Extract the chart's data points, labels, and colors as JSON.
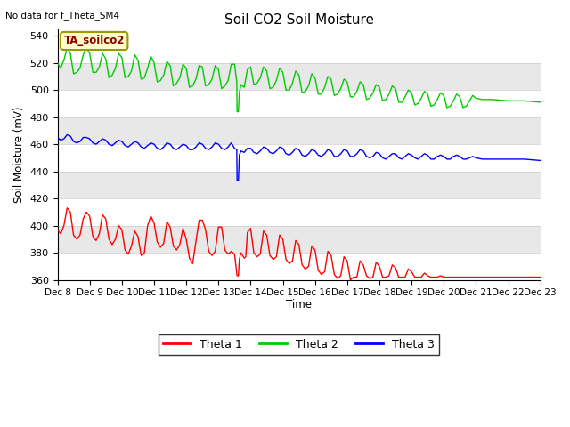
{
  "title": "Soil CO2 Soil Moisture",
  "top_left_text": "No data for f_Theta_SM4",
  "annotation_box_text": "TA_soilco2",
  "ylabel": "Soil Moisture (mV)",
  "xlabel": "Time",
  "ylim": [
    360,
    545
  ],
  "xlim": [
    0,
    15
  ],
  "x_tick_labels": [
    "Dec 8",
    "Dec 9",
    "Dec 10",
    "Dec 11",
    "Dec 12",
    "Dec 13",
    "Dec 14",
    "Dec 15",
    "Dec 16",
    "Dec 17",
    "Dec 18",
    "Dec 19",
    "Dec 20",
    "Dec 21",
    "Dec 22",
    "Dec 23"
  ],
  "background_color": "#ffffff",
  "plot_bg_color": "#e8e8e8",
  "white_band_ranges": [
    [
      360,
      380
    ],
    [
      400,
      420
    ],
    [
      440,
      460
    ],
    [
      480,
      500
    ],
    [
      520,
      545
    ]
  ],
  "gray_band_ranges": [
    [
      380,
      400
    ],
    [
      420,
      440
    ],
    [
      460,
      480
    ],
    [
      500,
      520
    ]
  ],
  "theta1_color": "#ff0000",
  "theta2_color": "#00cc00",
  "theta3_color": "#0000ff",
  "theta1_data": [
    [
      0.0,
      397
    ],
    [
      0.1,
      394
    ],
    [
      0.2,
      400
    ],
    [
      0.3,
      413
    ],
    [
      0.4,
      410
    ],
    [
      0.5,
      393
    ],
    [
      0.6,
      390
    ],
    [
      0.7,
      393
    ],
    [
      0.8,
      405
    ],
    [
      0.9,
      410
    ],
    [
      1.0,
      407
    ],
    [
      1.1,
      392
    ],
    [
      1.2,
      389
    ],
    [
      1.3,
      394
    ],
    [
      1.4,
      408
    ],
    [
      1.5,
      405
    ],
    [
      1.6,
      390
    ],
    [
      1.7,
      386
    ],
    [
      1.8,
      390
    ],
    [
      1.9,
      400
    ],
    [
      2.0,
      397
    ],
    [
      2.1,
      382
    ],
    [
      2.2,
      379
    ],
    [
      2.3,
      385
    ],
    [
      2.4,
      396
    ],
    [
      2.5,
      392
    ],
    [
      2.6,
      378
    ],
    [
      2.7,
      380
    ],
    [
      2.8,
      400
    ],
    [
      2.9,
      407
    ],
    [
      3.0,
      402
    ],
    [
      3.1,
      388
    ],
    [
      3.2,
      384
    ],
    [
      3.3,
      387
    ],
    [
      3.4,
      403
    ],
    [
      3.5,
      399
    ],
    [
      3.6,
      385
    ],
    [
      3.7,
      382
    ],
    [
      3.8,
      386
    ],
    [
      3.9,
      398
    ],
    [
      4.0,
      390
    ],
    [
      4.1,
      376
    ],
    [
      4.2,
      372
    ],
    [
      4.3,
      388
    ],
    [
      4.4,
      404
    ],
    [
      4.5,
      404
    ],
    [
      4.6,
      397
    ],
    [
      4.7,
      381
    ],
    [
      4.8,
      378
    ],
    [
      4.9,
      381
    ],
    [
      5.0,
      399
    ],
    [
      5.1,
      399
    ],
    [
      5.2,
      382
    ],
    [
      5.3,
      379
    ],
    [
      5.4,
      381
    ],
    [
      5.5,
      379
    ],
    [
      5.58,
      363
    ],
    [
      5.6,
      363
    ],
    [
      5.62,
      363
    ],
    [
      5.65,
      375
    ],
    [
      5.7,
      380
    ],
    [
      5.8,
      376
    ],
    [
      5.85,
      377
    ],
    [
      5.9,
      395
    ],
    [
      6.0,
      398
    ],
    [
      6.1,
      380
    ],
    [
      6.2,
      377
    ],
    [
      6.3,
      379
    ],
    [
      6.4,
      396
    ],
    [
      6.5,
      393
    ],
    [
      6.6,
      378
    ],
    [
      6.7,
      375
    ],
    [
      6.8,
      377
    ],
    [
      6.9,
      393
    ],
    [
      7.0,
      390
    ],
    [
      7.1,
      375
    ],
    [
      7.2,
      372
    ],
    [
      7.3,
      374
    ],
    [
      7.4,
      389
    ],
    [
      7.5,
      386
    ],
    [
      7.6,
      371
    ],
    [
      7.7,
      368
    ],
    [
      7.8,
      370
    ],
    [
      7.9,
      385
    ],
    [
      8.0,
      382
    ],
    [
      8.1,
      367
    ],
    [
      8.2,
      364
    ],
    [
      8.3,
      366
    ],
    [
      8.4,
      381
    ],
    [
      8.5,
      378
    ],
    [
      8.6,
      364
    ],
    [
      8.7,
      361
    ],
    [
      8.8,
      363
    ],
    [
      8.9,
      377
    ],
    [
      9.0,
      374
    ],
    [
      9.1,
      360
    ],
    [
      9.2,
      362
    ],
    [
      9.3,
      362
    ],
    [
      9.4,
      374
    ],
    [
      9.5,
      371
    ],
    [
      9.6,
      363
    ],
    [
      9.7,
      361
    ],
    [
      9.8,
      362
    ],
    [
      9.9,
      373
    ],
    [
      10.0,
      370
    ],
    [
      10.1,
      362
    ],
    [
      10.2,
      362
    ],
    [
      10.3,
      363
    ],
    [
      10.4,
      371
    ],
    [
      10.5,
      369
    ],
    [
      10.6,
      362
    ],
    [
      10.7,
      362
    ],
    [
      10.8,
      362
    ],
    [
      10.9,
      368
    ],
    [
      11.0,
      366
    ],
    [
      11.1,
      362
    ],
    [
      11.2,
      362
    ],
    [
      11.3,
      362
    ],
    [
      11.4,
      365
    ],
    [
      11.5,
      363
    ],
    [
      11.6,
      362
    ],
    [
      11.7,
      362
    ],
    [
      11.8,
      362
    ],
    [
      11.9,
      363
    ],
    [
      12.0,
      362
    ],
    [
      12.1,
      362
    ],
    [
      12.2,
      362
    ],
    [
      12.3,
      362
    ],
    [
      12.4,
      362
    ],
    [
      12.5,
      362
    ],
    [
      12.6,
      362
    ],
    [
      12.7,
      362
    ],
    [
      12.8,
      362
    ],
    [
      12.9,
      362
    ],
    [
      13.0,
      362
    ],
    [
      13.1,
      362
    ],
    [
      13.2,
      362
    ],
    [
      13.5,
      362
    ],
    [
      14.0,
      362
    ],
    [
      14.5,
      362
    ],
    [
      15.0,
      362
    ]
  ],
  "theta2_data": [
    [
      0.0,
      520
    ],
    [
      0.1,
      516
    ],
    [
      0.2,
      522
    ],
    [
      0.3,
      531
    ],
    [
      0.4,
      527
    ],
    [
      0.5,
      512
    ],
    [
      0.6,
      513
    ],
    [
      0.7,
      516
    ],
    [
      0.8,
      526
    ],
    [
      0.9,
      531
    ],
    [
      1.0,
      527
    ],
    [
      1.1,
      513
    ],
    [
      1.2,
      513
    ],
    [
      1.3,
      517
    ],
    [
      1.4,
      527
    ],
    [
      1.5,
      523
    ],
    [
      1.6,
      509
    ],
    [
      1.7,
      511
    ],
    [
      1.8,
      516
    ],
    [
      1.9,
      527
    ],
    [
      2.0,
      524
    ],
    [
      2.1,
      509
    ],
    [
      2.2,
      510
    ],
    [
      2.3,
      514
    ],
    [
      2.4,
      526
    ],
    [
      2.5,
      522
    ],
    [
      2.6,
      508
    ],
    [
      2.7,
      509
    ],
    [
      2.8,
      516
    ],
    [
      2.9,
      525
    ],
    [
      3.0,
      520
    ],
    [
      3.1,
      506
    ],
    [
      3.2,
      507
    ],
    [
      3.3,
      511
    ],
    [
      3.4,
      521
    ],
    [
      3.5,
      518
    ],
    [
      3.6,
      503
    ],
    [
      3.7,
      505
    ],
    [
      3.8,
      509
    ],
    [
      3.9,
      519
    ],
    [
      4.0,
      516
    ],
    [
      4.1,
      502
    ],
    [
      4.2,
      503
    ],
    [
      4.3,
      508
    ],
    [
      4.4,
      518
    ],
    [
      4.5,
      517
    ],
    [
      4.6,
      503
    ],
    [
      4.7,
      504
    ],
    [
      4.8,
      508
    ],
    [
      4.9,
      518
    ],
    [
      5.0,
      515
    ],
    [
      5.1,
      501
    ],
    [
      5.2,
      503
    ],
    [
      5.3,
      507
    ],
    [
      5.4,
      519
    ],
    [
      5.5,
      519
    ],
    [
      5.57,
      506
    ],
    [
      5.58,
      484
    ],
    [
      5.6,
      484
    ],
    [
      5.62,
      484
    ],
    [
      5.65,
      498
    ],
    [
      5.7,
      504
    ],
    [
      5.8,
      502
    ],
    [
      5.9,
      515
    ],
    [
      6.0,
      517
    ],
    [
      6.1,
      504
    ],
    [
      6.2,
      505
    ],
    [
      6.3,
      509
    ],
    [
      6.4,
      517
    ],
    [
      6.5,
      514
    ],
    [
      6.6,
      501
    ],
    [
      6.7,
      502
    ],
    [
      6.8,
      507
    ],
    [
      6.9,
      516
    ],
    [
      7.0,
      513
    ],
    [
      7.1,
      500
    ],
    [
      7.2,
      500
    ],
    [
      7.3,
      505
    ],
    [
      7.4,
      514
    ],
    [
      7.5,
      511
    ],
    [
      7.6,
      498
    ],
    [
      7.7,
      499
    ],
    [
      7.8,
      503
    ],
    [
      7.9,
      512
    ],
    [
      8.0,
      509
    ],
    [
      8.1,
      497
    ],
    [
      8.2,
      497
    ],
    [
      8.3,
      502
    ],
    [
      8.4,
      510
    ],
    [
      8.5,
      508
    ],
    [
      8.6,
      496
    ],
    [
      8.7,
      497
    ],
    [
      8.8,
      501
    ],
    [
      8.9,
      508
    ],
    [
      9.0,
      506
    ],
    [
      9.1,
      495
    ],
    [
      9.2,
      495
    ],
    [
      9.3,
      499
    ],
    [
      9.4,
      506
    ],
    [
      9.5,
      504
    ],
    [
      9.6,
      493
    ],
    [
      9.7,
      494
    ],
    [
      9.8,
      498
    ],
    [
      9.9,
      504
    ],
    [
      10.0,
      502
    ],
    [
      10.1,
      492
    ],
    [
      10.2,
      493
    ],
    [
      10.3,
      497
    ],
    [
      10.4,
      503
    ],
    [
      10.5,
      501
    ],
    [
      10.6,
      491
    ],
    [
      10.7,
      491
    ],
    [
      10.8,
      495
    ],
    [
      10.9,
      500
    ],
    [
      11.0,
      498
    ],
    [
      11.1,
      489
    ],
    [
      11.2,
      490
    ],
    [
      11.3,
      494
    ],
    [
      11.4,
      499
    ],
    [
      11.5,
      497
    ],
    [
      11.6,
      488
    ],
    [
      11.7,
      489
    ],
    [
      11.8,
      493
    ],
    [
      11.9,
      498
    ],
    [
      12.0,
      496
    ],
    [
      12.1,
      487
    ],
    [
      12.2,
      488
    ],
    [
      12.3,
      492
    ],
    [
      12.4,
      497
    ],
    [
      12.5,
      495
    ],
    [
      12.6,
      487
    ],
    [
      12.7,
      488
    ],
    [
      12.8,
      492
    ],
    [
      12.9,
      496
    ],
    [
      13.0,
      494
    ],
    [
      13.2,
      493
    ],
    [
      13.5,
      493
    ],
    [
      14.0,
      492
    ],
    [
      14.5,
      492
    ],
    [
      15.0,
      491
    ]
  ],
  "theta3_data": [
    [
      0.0,
      465
    ],
    [
      0.1,
      463
    ],
    [
      0.2,
      464
    ],
    [
      0.3,
      467
    ],
    [
      0.4,
      466
    ],
    [
      0.5,
      462
    ],
    [
      0.6,
      461
    ],
    [
      0.7,
      462
    ],
    [
      0.8,
      465
    ],
    [
      0.9,
      465
    ],
    [
      1.0,
      464
    ],
    [
      1.1,
      461
    ],
    [
      1.2,
      460
    ],
    [
      1.3,
      462
    ],
    [
      1.4,
      464
    ],
    [
      1.5,
      463
    ],
    [
      1.6,
      460
    ],
    [
      1.7,
      459
    ],
    [
      1.8,
      461
    ],
    [
      1.9,
      463
    ],
    [
      2.0,
      462
    ],
    [
      2.1,
      459
    ],
    [
      2.2,
      458
    ],
    [
      2.3,
      460
    ],
    [
      2.4,
      462
    ],
    [
      2.5,
      461
    ],
    [
      2.6,
      458
    ],
    [
      2.7,
      457
    ],
    [
      2.8,
      459
    ],
    [
      2.9,
      461
    ],
    [
      3.0,
      460
    ],
    [
      3.1,
      457
    ],
    [
      3.2,
      456
    ],
    [
      3.3,
      458
    ],
    [
      3.4,
      461
    ],
    [
      3.5,
      460
    ],
    [
      3.6,
      457
    ],
    [
      3.7,
      456
    ],
    [
      3.8,
      458
    ],
    [
      3.9,
      460
    ],
    [
      4.0,
      459
    ],
    [
      4.1,
      456
    ],
    [
      4.2,
      456
    ],
    [
      4.3,
      458
    ],
    [
      4.4,
      461
    ],
    [
      4.5,
      460
    ],
    [
      4.6,
      457
    ],
    [
      4.7,
      456
    ],
    [
      4.8,
      458
    ],
    [
      4.9,
      461
    ],
    [
      5.0,
      460
    ],
    [
      5.1,
      457
    ],
    [
      5.2,
      456
    ],
    [
      5.3,
      458
    ],
    [
      5.4,
      461
    ],
    [
      5.5,
      457
    ],
    [
      5.57,
      456
    ],
    [
      5.58,
      433
    ],
    [
      5.6,
      433
    ],
    [
      5.62,
      433
    ],
    [
      5.65,
      452
    ],
    [
      5.7,
      455
    ],
    [
      5.8,
      454
    ],
    [
      5.9,
      457
    ],
    [
      6.0,
      457
    ],
    [
      6.1,
      454
    ],
    [
      6.2,
      453
    ],
    [
      6.3,
      455
    ],
    [
      6.4,
      458
    ],
    [
      6.5,
      457
    ],
    [
      6.6,
      454
    ],
    [
      6.7,
      453
    ],
    [
      6.8,
      455
    ],
    [
      6.9,
      458
    ],
    [
      7.0,
      457
    ],
    [
      7.1,
      453
    ],
    [
      7.2,
      452
    ],
    [
      7.3,
      454
    ],
    [
      7.4,
      457
    ],
    [
      7.5,
      456
    ],
    [
      7.6,
      452
    ],
    [
      7.7,
      451
    ],
    [
      7.8,
      453
    ],
    [
      7.9,
      456
    ],
    [
      8.0,
      455
    ],
    [
      8.1,
      452
    ],
    [
      8.2,
      451
    ],
    [
      8.3,
      453
    ],
    [
      8.4,
      456
    ],
    [
      8.5,
      455
    ],
    [
      8.6,
      451
    ],
    [
      8.7,
      451
    ],
    [
      8.8,
      453
    ],
    [
      8.9,
      456
    ],
    [
      9.0,
      455
    ],
    [
      9.1,
      451
    ],
    [
      9.2,
      451
    ],
    [
      9.3,
      453
    ],
    [
      9.4,
      456
    ],
    [
      9.5,
      455
    ],
    [
      9.6,
      451
    ],
    [
      9.7,
      450
    ],
    [
      9.8,
      451
    ],
    [
      9.9,
      454
    ],
    [
      10.0,
      453
    ],
    [
      10.1,
      450
    ],
    [
      10.2,
      449
    ],
    [
      10.3,
      451
    ],
    [
      10.4,
      453
    ],
    [
      10.5,
      453
    ],
    [
      10.6,
      450
    ],
    [
      10.7,
      449
    ],
    [
      10.8,
      451
    ],
    [
      10.9,
      453
    ],
    [
      11.0,
      452
    ],
    [
      11.1,
      450
    ],
    [
      11.2,
      449
    ],
    [
      11.3,
      451
    ],
    [
      11.4,
      453
    ],
    [
      11.5,
      452
    ],
    [
      11.6,
      449
    ],
    [
      11.7,
      449
    ],
    [
      11.8,
      451
    ],
    [
      11.9,
      452
    ],
    [
      12.0,
      451
    ],
    [
      12.1,
      449
    ],
    [
      12.2,
      449
    ],
    [
      12.3,
      451
    ],
    [
      12.4,
      452
    ],
    [
      12.5,
      451
    ],
    [
      12.6,
      449
    ],
    [
      12.7,
      449
    ],
    [
      12.8,
      450
    ],
    [
      12.9,
      451
    ],
    [
      13.0,
      450
    ],
    [
      13.2,
      449
    ],
    [
      13.5,
      449
    ],
    [
      14.0,
      449
    ],
    [
      14.5,
      449
    ],
    [
      15.0,
      448
    ]
  ]
}
